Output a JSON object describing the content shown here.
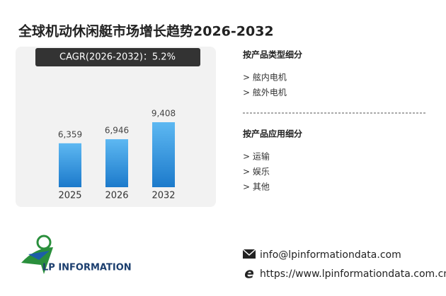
{
  "title": "全球机动休闲艇市场增长趋势2026-2032",
  "badge": "CAGR(2026-2032)：5.2%",
  "chart_data": {
    "type": "bar",
    "categories": [
      "2025",
      "2026",
      "2032"
    ],
    "values": [
      6359,
      6946,
      9408
    ],
    "value_labels": [
      "6,359",
      "6,946",
      "9,408"
    ],
    "color": [
      "#5db8f2",
      "#1c7acb"
    ]
  },
  "sections": [
    {
      "title": "按产品类型细分",
      "items": [
        "> 舷内电机",
        "> 舷外电机"
      ]
    },
    {
      "title": "按产品应用细分",
      "items": [
        "> 运输",
        "> 娱乐",
        "> 其他"
      ]
    }
  ],
  "contact": {
    "email": "info@lpinformationdata.com",
    "website": "https://www.lpinformationdata.com.cn"
  },
  "logo": "LP INFORMATION"
}
